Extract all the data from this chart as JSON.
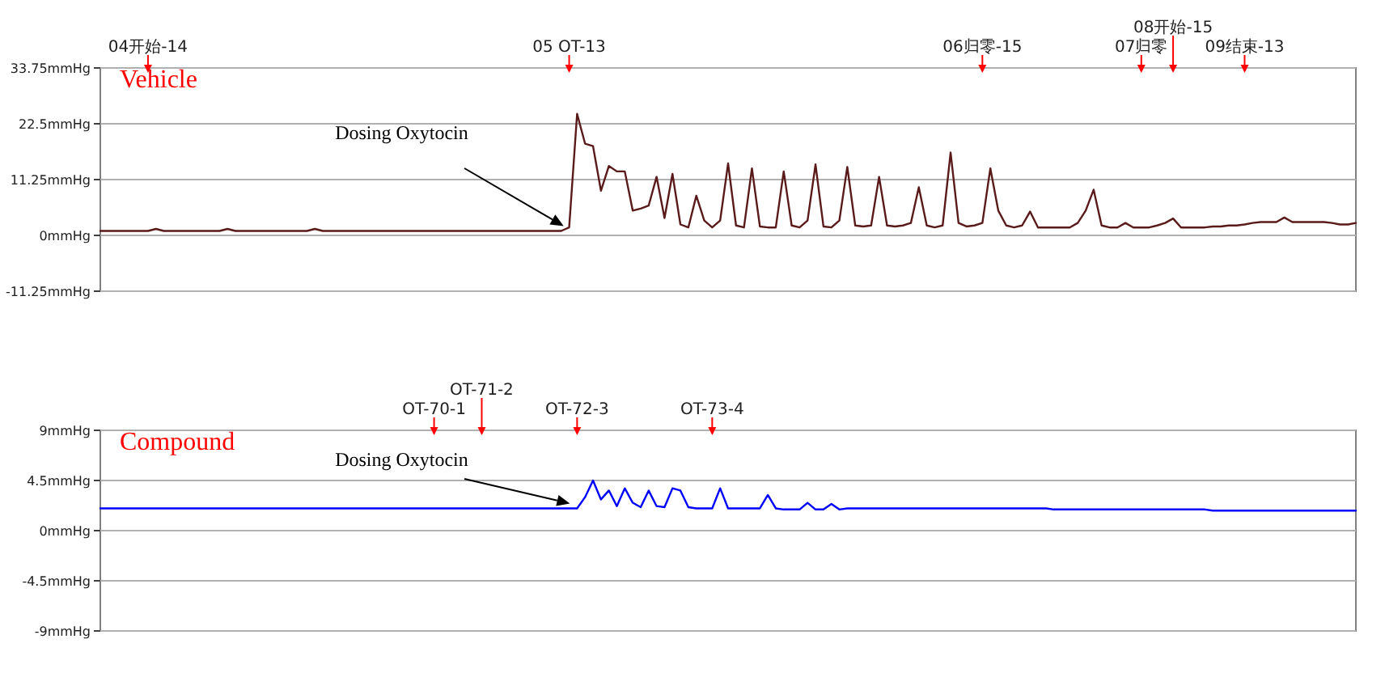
{
  "chart_data": [
    {
      "type": "line",
      "title": "Vehicle",
      "ylim": [
        -11.25,
        33.75
      ],
      "grid": "y",
      "marker": "none",
      "line_style": "solid",
      "categories": [
        null,
        null,
        null,
        null,
        null,
        null,
        "04开始-14",
        null,
        null,
        null,
        null,
        null,
        null,
        null,
        null,
        null,
        null,
        null,
        null,
        null,
        null,
        null,
        null,
        null,
        null,
        null,
        null,
        null,
        null,
        null,
        null,
        null,
        null,
        null,
        null,
        null,
        null,
        null,
        null,
        null,
        null,
        null,
        null,
        null,
        null,
        null,
        null,
        null,
        null,
        null,
        null,
        null,
        null,
        null,
        null,
        null,
        null,
        null,
        null,
        "05  OT-13",
        null,
        null,
        null,
        null,
        null,
        null,
        null,
        null,
        null,
        null,
        null,
        null,
        null,
        null,
        null,
        null,
        null,
        null,
        null,
        null,
        null,
        null,
        null,
        null,
        null,
        null,
        null,
        null,
        null,
        null,
        null,
        null,
        null,
        null,
        null,
        null,
        null,
        null,
        null,
        null,
        null,
        null,
        null,
        null,
        null,
        null,
        null,
        null,
        null,
        null,
        null,
        "06归零-15",
        null,
        null,
        null,
        null,
        null,
        null,
        null,
        null,
        null,
        null,
        null,
        null,
        null,
        null,
        null,
        null,
        null,
        null,
        null,
        "07归零",
        null,
        null,
        null,
        "08开始-15",
        null,
        null,
        null,
        null,
        null,
        null,
        null,
        null,
        "09结束-13",
        null,
        null,
        null,
        null,
        null,
        null,
        null,
        null,
        null,
        null,
        null,
        null,
        null,
        null
      ],
      "yticks": [
        {
          "value": -11.25,
          "label": "-11.25mmHg"
        },
        {
          "value": 0,
          "label": "0mmHg"
        },
        {
          "value": 11.25,
          "label": "11.25mmHg"
        },
        {
          "value": 22.5,
          "label": "22.5mmHg"
        },
        {
          "value": 33.75,
          "label": "33.75mmHg"
        }
      ],
      "series": [
        {
          "color": "#5a1a1a",
          "values": [
            0.9,
            0.9,
            0.9,
            0.9,
            0.9,
            0.9,
            0.9,
            1.3,
            0.9,
            0.9,
            0.9,
            0.9,
            0.9,
            0.9,
            0.9,
            0.9,
            1.3,
            0.9,
            0.9,
            0.9,
            0.9,
            0.9,
            0.9,
            0.9,
            0.9,
            0.9,
            0.9,
            1.3,
            0.9,
            0.9,
            0.9,
            0.9,
            0.9,
            0.9,
            0.9,
            0.9,
            0.9,
            0.9,
            0.9,
            0.9,
            0.9,
            0.9,
            0.9,
            0.9,
            0.9,
            0.9,
            0.9,
            0.9,
            0.9,
            0.9,
            0.9,
            0.9,
            0.9,
            0.9,
            0.9,
            0.9,
            0.9,
            0.9,
            0.9,
            1.6,
            24.5,
            18.5,
            18.0,
            9.0,
            14.0,
            12.9,
            12.9,
            5.0,
            5.4,
            6.0,
            11.8,
            3.5,
            12.4,
            2.2,
            1.6,
            8.0,
            3.0,
            1.6,
            3.0,
            14.5,
            2.0,
            1.6,
            13.5,
            1.8,
            1.6,
            1.6,
            12.9,
            2.0,
            1.6,
            3.0,
            14.3,
            1.8,
            1.6,
            3.0,
            13.8,
            2.0,
            1.8,
            2.0,
            11.8,
            2.0,
            1.8,
            2.0,
            2.5,
            9.7,
            2.0,
            1.6,
            2.0,
            16.7,
            2.5,
            1.8,
            2.0,
            2.5,
            13.5,
            5.0,
            2.0,
            1.6,
            2.0,
            4.8,
            1.6,
            1.6,
            1.6,
            1.6,
            1.6,
            2.5,
            5.0,
            9.2,
            2.0,
            1.6,
            1.6,
            2.5,
            1.6,
            1.6,
            1.6,
            2.0,
            2.5,
            3.4,
            1.6,
            1.6,
            1.6,
            1.6,
            1.8,
            1.8,
            2.0,
            2.0,
            2.2,
            2.5,
            2.7,
            2.7,
            2.7,
            3.6,
            2.7,
            2.7,
            2.7,
            2.7,
            2.7,
            2.5,
            2.2,
            2.2,
            2.5
          ]
        }
      ],
      "annotations": [
        "Dosing Oxytocin"
      ]
    },
    {
      "type": "line",
      "title": "Compound",
      "ylim": [
        -9,
        9
      ],
      "grid": "y",
      "marker": "none",
      "line_style": "solid",
      "categories": [
        null,
        null,
        null,
        null,
        null,
        null,
        null,
        null,
        null,
        null,
        null,
        null,
        null,
        null,
        null,
        null,
        null,
        null,
        null,
        null,
        null,
        null,
        null,
        null,
        null,
        null,
        null,
        null,
        null,
        null,
        null,
        null,
        null,
        null,
        null,
        null,
        null,
        null,
        null,
        null,
        null,
        null,
        "OT-70-1",
        null,
        null,
        null,
        null,
        null,
        "OT-71-2",
        null,
        null,
        null,
        null,
        null,
        null,
        null,
        null,
        null,
        null,
        null,
        "OT-72-3",
        null,
        null,
        null,
        null,
        null,
        null,
        null,
        null,
        null,
        null,
        null,
        null,
        null,
        null,
        null,
        null,
        "OT-73-4",
        null,
        null,
        null,
        null,
        null,
        null,
        null,
        null,
        null,
        null,
        null,
        null,
        null,
        null,
        null,
        null,
        null,
        null,
        null,
        null,
        null,
        null,
        null,
        null,
        null,
        null,
        null,
        null,
        null,
        null,
        null,
        null,
        null,
        null,
        null,
        null,
        null,
        null,
        null,
        null,
        null,
        null,
        null,
        null,
        null,
        null,
        null,
        null,
        null,
        null,
        null,
        null,
        null,
        null,
        null,
        null,
        null,
        null,
        null,
        null,
        null,
        null,
        null,
        null,
        null,
        null,
        null,
        null,
        null,
        null,
        null,
        null,
        null,
        null,
        null,
        null,
        null,
        null,
        null,
        null,
        null
      ],
      "yticks": [
        {
          "value": -9,
          "label": "-9mmHg"
        },
        {
          "value": -4.5,
          "label": "-4.5mmHg"
        },
        {
          "value": 0,
          "label": "0mmHg"
        },
        {
          "value": 4.5,
          "label": "4.5mmHg"
        },
        {
          "value": 9,
          "label": "9mmHg"
        }
      ],
      "series": [
        {
          "color": "#0000ff",
          "values": [
            2.0,
            2.0,
            2.0,
            2.0,
            2.0,
            2.0,
            2.0,
            2.0,
            2.0,
            2.0,
            2.0,
            2.0,
            2.0,
            2.0,
            2.0,
            2.0,
            2.0,
            2.0,
            2.0,
            2.0,
            2.0,
            2.0,
            2.0,
            2.0,
            2.0,
            2.0,
            2.0,
            2.0,
            2.0,
            2.0,
            2.0,
            2.0,
            2.0,
            2.0,
            2.0,
            2.0,
            2.0,
            2.0,
            2.0,
            2.0,
            2.0,
            2.0,
            2.0,
            2.0,
            2.0,
            2.0,
            2.0,
            2.0,
            2.0,
            2.0,
            2.0,
            2.0,
            2.0,
            2.0,
            2.0,
            2.0,
            2.0,
            2.0,
            2.0,
            2.0,
            2.0,
            3.0,
            4.5,
            2.8,
            3.6,
            2.2,
            3.8,
            2.5,
            2.1,
            3.6,
            2.2,
            2.1,
            3.8,
            3.6,
            2.1,
            2.0,
            2.0,
            2.0,
            3.8,
            2.0,
            2.0,
            2.0,
            2.0,
            2.0,
            3.2,
            2.0,
            1.9,
            1.9,
            1.9,
            2.5,
            1.9,
            1.9,
            2.4,
            1.9,
            2.0,
            2.0,
            2.0,
            2.0,
            2.0,
            2.0,
            2.0,
            2.0,
            2.0,
            2.0,
            2.0,
            2.0,
            2.0,
            2.0,
            2.0,
            2.0,
            2.0,
            2.0,
            2.0,
            2.0,
            2.0,
            2.0,
            2.0,
            2.0,
            2.0,
            2.0,
            1.9,
            1.9,
            1.9,
            1.9,
            1.9,
            1.9,
            1.9,
            1.9,
            1.9,
            1.9,
            1.9,
            1.9,
            1.9,
            1.9,
            1.9,
            1.9,
            1.9,
            1.9,
            1.9,
            1.9,
            1.8,
            1.8,
            1.8,
            1.8,
            1.8,
            1.8,
            1.8,
            1.8,
            1.8,
            1.8,
            1.8,
            1.8,
            1.8,
            1.8,
            1.8,
            1.8,
            1.8,
            1.8,
            1.8
          ]
        }
      ],
      "annotations": [
        "Dosing Oxytocin"
      ]
    }
  ]
}
